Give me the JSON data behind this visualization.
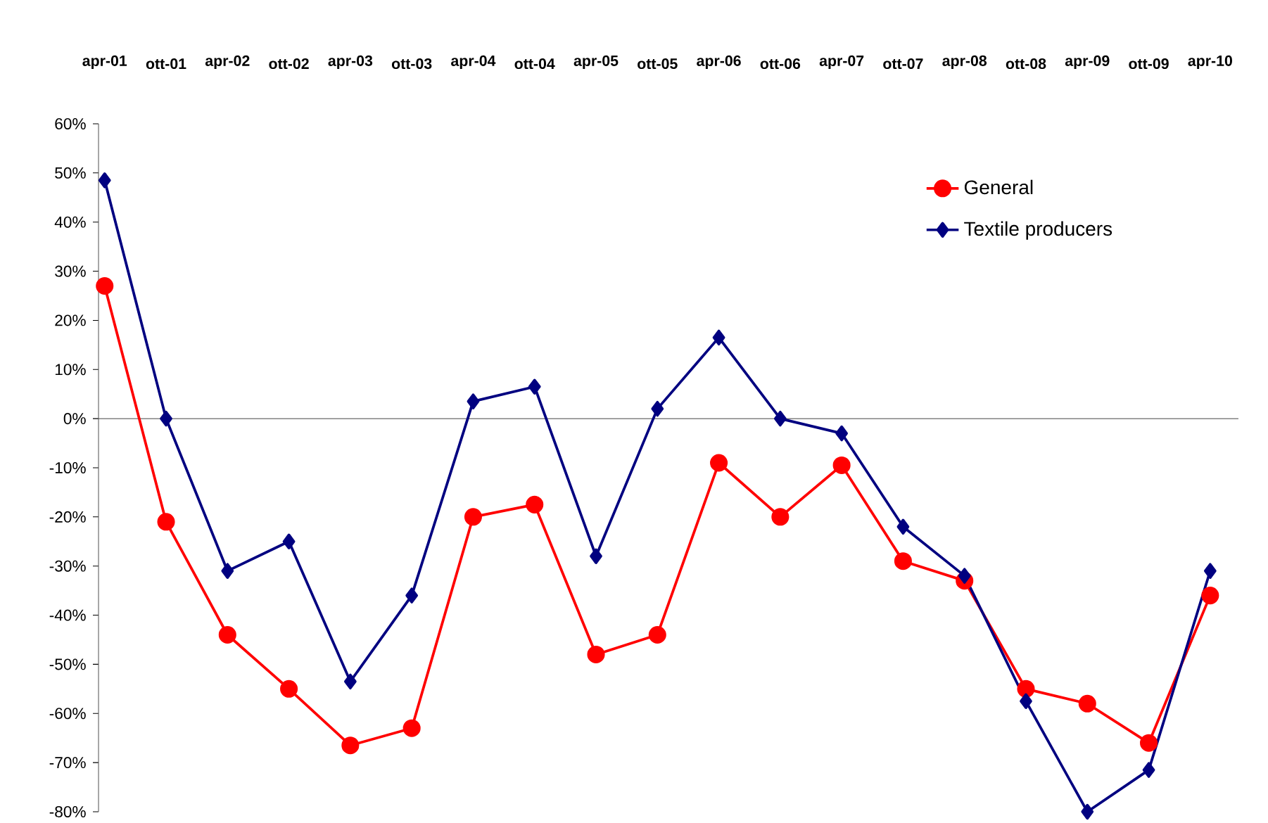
{
  "chart_data": {
    "type": "line",
    "categories": [
      "apr-01",
      "ott-01",
      "apr-02",
      "ott-02",
      "apr-03",
      "ott-03",
      "apr-04",
      "ott-04",
      "apr-05",
      "ott-05",
      "apr-06",
      "ott-06",
      "apr-07",
      "ott-07",
      "apr-08",
      "ott-08",
      "apr-09",
      "ott-09",
      "apr-10"
    ],
    "series": [
      {
        "name": "General",
        "color": "#ff0000",
        "marker": "circle",
        "values": [
          27,
          -21,
          -44,
          -55,
          -66.5,
          -63,
          -20,
          -17.5,
          -48,
          -44,
          -9,
          -20,
          -9.5,
          -29,
          -33,
          -55,
          -58,
          -66,
          -36
        ]
      },
      {
        "name": "Textile producers",
        "color": "#000080",
        "marker": "diamond",
        "values": [
          48.5,
          0,
          -31,
          -25,
          -53.5,
          -36,
          3.5,
          6.5,
          -28,
          2,
          16.5,
          0,
          -3,
          -22,
          -32,
          -57.5,
          -80,
          -71.5,
          -31
        ]
      }
    ],
    "ylim": [
      -80,
      60
    ],
    "yticks": [
      {
        "value": -80,
        "label": "-80%"
      },
      {
        "value": -70,
        "label": "-70%"
      },
      {
        "value": -60,
        "label": "-60%"
      },
      {
        "value": -50,
        "label": "-50%"
      },
      {
        "value": -40,
        "label": "-40%"
      },
      {
        "value": -30,
        "label": "-30%"
      },
      {
        "value": -20,
        "label": "-20%"
      },
      {
        "value": -10,
        "label": "-10%"
      },
      {
        "value": 0,
        "label": "0%"
      },
      {
        "value": 10,
        "label": "10%"
      },
      {
        "value": 20,
        "label": "20%"
      },
      {
        "value": 30,
        "label": "30%"
      },
      {
        "value": 40,
        "label": "40%"
      },
      {
        "value": 50,
        "label": "50%"
      },
      {
        "value": 60,
        "label": "60%"
      }
    ],
    "legend": "top right",
    "line_style": "solid"
  }
}
